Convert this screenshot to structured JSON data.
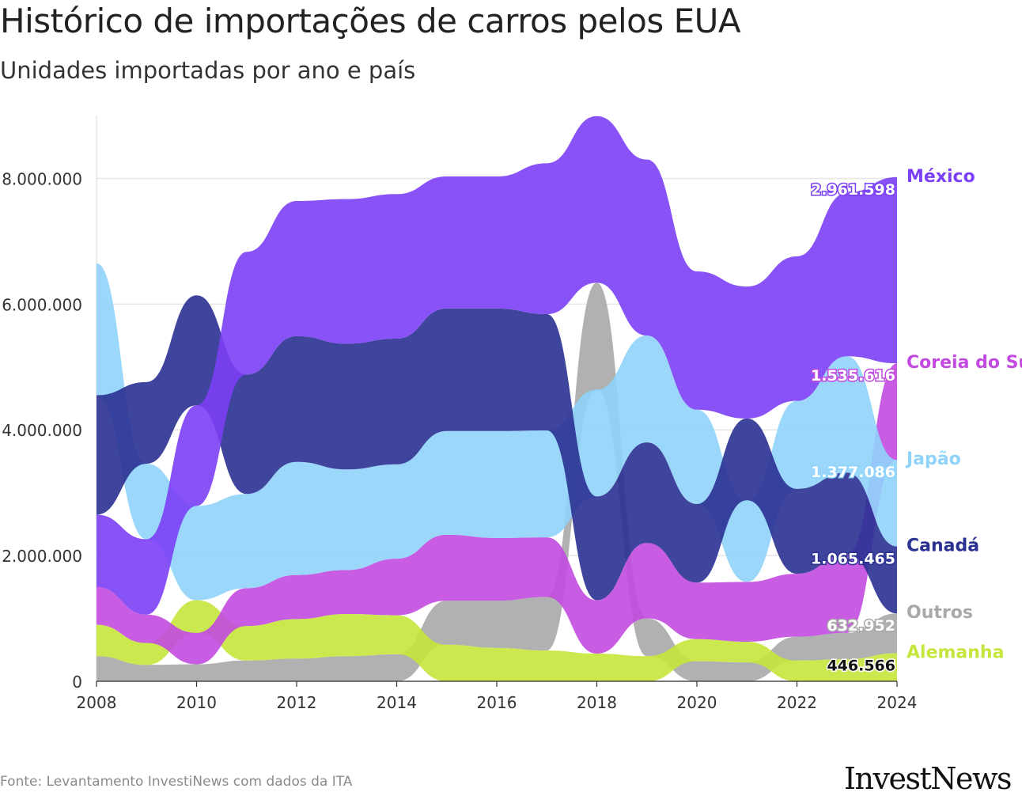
{
  "title": "Histórico de importações de carros pelos EUA",
  "subtitle": "Unidades importadas por ano e país",
  "source": "Fonte: Levantamento InvestiNews com dados da ITA",
  "logo": "InvestNews",
  "chart_data": {
    "type": "area",
    "stacking": "ranked stream (largest series on top each year)",
    "x": [
      2008,
      2009,
      2010,
      2011,
      2012,
      2013,
      2014,
      2015,
      2016,
      2017,
      2018,
      2019,
      2020,
      2021,
      2022,
      2023,
      2024
    ],
    "x_ticks": [
      "2008",
      "2010",
      "2012",
      "2014",
      "2016",
      "2018",
      "2020",
      "2022",
      "2024"
    ],
    "y_ticks": [
      "0",
      "2.000.000",
      "4.000.000",
      "6.000.000",
      "8.000.000"
    ],
    "y_tick_values": [
      0,
      2000000,
      4000000,
      6000000,
      8000000
    ],
    "ylim": [
      0,
      9000000
    ],
    "grid": true,
    "legend": "right end labels",
    "series": [
      {
        "name": "México",
        "color": "#7b3ff5",
        "end_value_label": "2.961.598",
        "values": [
          1150000,
          1200000,
          1600000,
          1950000,
          2150000,
          2300000,
          2300000,
          2100000,
          2100000,
          2400000,
          2650000,
          2800000,
          2200000,
          2100000,
          2300000,
          2600000,
          2961598
        ]
      },
      {
        "name": "Coreia do Sul",
        "color": "#c24ae0",
        "end_value_label": "1.535.616",
        "values": [
          600000,
          450000,
          500000,
          600000,
          700000,
          700000,
          900000,
          1050000,
          1000000,
          950000,
          850000,
          1200000,
          900000,
          950000,
          1000000,
          1250000,
          1535616
        ]
      },
      {
        "name": "Japão",
        "color": "#8fd3fa",
        "end_value_label": "1.377.086",
        "values": [
          2100000,
          1200000,
          1500000,
          1500000,
          1800000,
          1600000,
          1500000,
          1650000,
          1700000,
          1700000,
          1700000,
          1700000,
          1500000,
          1300000,
          1400000,
          1850000,
          1377086
        ]
      },
      {
        "name": "Canadá",
        "color": "#2a3191",
        "end_value_label": "1.065.465",
        "values": [
          1900000,
          1300000,
          1750000,
          1900000,
          2000000,
          2000000,
          2000000,
          1950000,
          1950000,
          1850000,
          1650000,
          1600000,
          1250000,
          1300000,
          1350000,
          1300000,
          1065465
        ]
      },
      {
        "name": "Outros",
        "color": "#a9a9a9",
        "end_value_label": "632.952",
        "values": [
          400000,
          260000,
          270000,
          330000,
          360000,
          400000,
          430000,
          700000,
          750000,
          850000,
          1700000,
          600000,
          320000,
          300000,
          380000,
          420000,
          632952
        ]
      },
      {
        "name": "Alemanha",
        "color": "#c5e63c",
        "end_value_label": "446.566",
        "values": [
          500000,
          350000,
          520000,
          550000,
          630000,
          670000,
          620000,
          580000,
          530000,
          490000,
          440000,
          400000,
          350000,
          330000,
          330000,
          350000,
          446566
        ]
      }
    ]
  }
}
